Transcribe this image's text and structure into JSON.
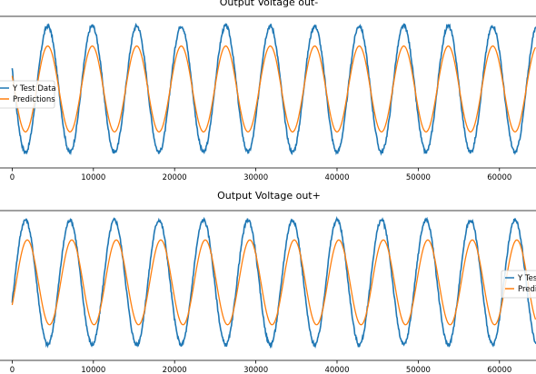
{
  "chart_data": [
    {
      "type": "line",
      "title": "Output Voltage out-",
      "xlabel": "",
      "ylabel": "",
      "xlim": [
        -1500,
        64500
      ],
      "ylim": [
        -1.25,
        1.15
      ],
      "xticks": [
        0,
        10000,
        20000,
        30000,
        40000,
        50000,
        60000
      ],
      "xtick_labels": [
        "0",
        "10000",
        "20000",
        "30000",
        "40000",
        "50000",
        "60000"
      ],
      "grid": false,
      "legend_position": "center-left",
      "series": [
        {
          "name": "Y Test Data",
          "color": "#1f77b4",
          "period": 5480,
          "phase_x": 4380,
          "amplitude": 1.0,
          "noise": 0.03,
          "x_range": [
            0,
            64500
          ]
        },
        {
          "name": "Predictions",
          "color": "#ff7f0e",
          "period": 5480,
          "phase_x": 4380,
          "amplitude": 0.68,
          "noise": 0,
          "x_range": [
            0,
            64500
          ]
        }
      ]
    },
    {
      "type": "line",
      "title": "Output Voltage out+",
      "xlabel": "",
      "ylabel": "",
      "xlim": [
        -1500,
        64500
      ],
      "ylim": [
        -1.25,
        1.15
      ],
      "xticks": [
        0,
        10000,
        20000,
        30000,
        40000,
        50000,
        60000
      ],
      "xtick_labels": [
        "0",
        "10000",
        "20000",
        "30000",
        "40000",
        "50000",
        "60000"
      ],
      "grid": false,
      "legend_position": "center-right",
      "series": [
        {
          "name": "Y Test Data",
          "color": "#1f77b4",
          "period": 5480,
          "phase_x": 1640,
          "amplitude": 1.0,
          "noise": 0.03,
          "x_range": [
            0,
            64500
          ]
        },
        {
          "name": "Predictions",
          "color": "#ff7f0e",
          "period": 5480,
          "phase_x": 1860,
          "amplitude": 0.68,
          "noise": 0,
          "x_range": [
            0,
            64500
          ]
        }
      ]
    }
  ]
}
